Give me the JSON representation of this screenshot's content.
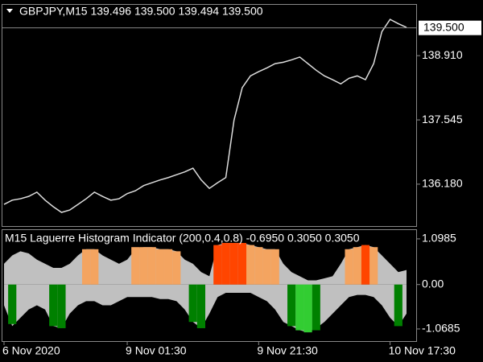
{
  "chart_data": [
    {
      "type": "line",
      "title": "GBPJPY,M15  139.496 139.500 139.494 139.500",
      "color": "#dddddd",
      "categories": [
        "6 Nov 2020",
        null,
        null,
        null,
        null,
        null,
        null,
        null,
        null,
        null,
        null,
        null,
        null,
        null,
        null,
        "9 Nov 01:30",
        null,
        null,
        null,
        null,
        null,
        null,
        null,
        null,
        null,
        null,
        null,
        null,
        null,
        null,
        null,
        "9 Nov 21:30",
        null,
        null,
        null,
        null,
        null,
        null,
        null,
        null,
        null,
        null,
        null,
        null,
        null,
        null,
        null,
        "10 Nov 17:30",
        null,
        null
      ],
      "values": [
        135.75,
        135.84,
        135.87,
        135.92,
        136.01,
        135.84,
        135.7,
        135.58,
        135.63,
        135.75,
        135.87,
        136.01,
        135.92,
        135.84,
        135.87,
        135.98,
        136.04,
        136.15,
        136.21,
        136.27,
        136.32,
        136.38,
        136.44,
        136.52,
        136.27,
        136.09,
        136.21,
        136.32,
        137.54,
        138.23,
        138.48,
        138.57,
        138.65,
        138.74,
        138.77,
        138.82,
        138.88,
        138.74,
        138.6,
        138.48,
        138.4,
        138.31,
        138.43,
        138.48,
        138.4,
        138.74,
        139.42,
        139.68,
        139.59,
        139.51
      ],
      "ylim": [
        135.29,
        139.99
      ],
      "yticks": [
        {
          "value": 136.18,
          "label": "136.180"
        },
        137.545,
        {
          "value": 138.91,
          "label": "138.910"
        }
      ],
      "current_price": {
        "value": 139.5,
        "label": "139.500"
      }
    },
    {
      "type": "histogram-area",
      "title": "M15 Laguerre Histogram Indicator (200,0.4,0.8) -0.6950 0.3050 0.3050",
      "ylim": [
        -1.36,
        1.31
      ],
      "yticks": [
        1.0985,
        {
          "value": 0,
          "label": "0.00"
        },
        -1.0685
      ],
      "series": [
        {
          "kind": "area",
          "color": "#c0c0c0",
          "values": [
            0.5,
            0.7,
            0.8,
            0.75,
            0.6,
            0.5,
            0.4,
            0.4,
            0.5,
            0.7,
            0.85,
            0.85,
            0.7,
            0.6,
            0.5,
            0.6,
            0.85,
            0.9,
            0.9,
            0.85,
            0.85,
            0.8,
            0.6,
            0.5,
            0.3,
            0.2,
            0.95,
            1.0,
            1.0,
            1.0,
            0.95,
            0.9,
            0.85,
            0.85,
            0.5,
            0.3,
            0.2,
            0.1,
            0.1,
            0.15,
            0.2,
            0.5,
            0.85,
            0.9,
            0.95,
            0.9,
            0.7,
            0.5,
            0.3,
            0.35
          ]
        },
        {
          "kind": "area",
          "color": "#c0c0c0",
          "values": [
            -0.5,
            -1.0,
            -0.8,
            -0.6,
            -0.5,
            -0.6,
            -1.0,
            -1.05,
            -0.7,
            -0.5,
            -0.4,
            -0.4,
            -0.5,
            -0.5,
            -0.4,
            -0.3,
            -0.3,
            -0.3,
            -0.3,
            -0.35,
            -0.35,
            -0.4,
            -0.6,
            -0.9,
            -1.05,
            -0.7,
            -0.3,
            -0.2,
            -0.2,
            -0.2,
            -0.2,
            -0.3,
            -0.4,
            -0.6,
            -0.9,
            -1.0,
            -1.1,
            -1.15,
            -1.05,
            -0.9,
            -0.7,
            -0.5,
            -0.3,
            -0.25,
            -0.25,
            -0.3,
            -0.5,
            -0.8,
            -1.0,
            -0.7
          ]
        },
        {
          "kind": "bar",
          "color": "#f4a460",
          "values": [
            null,
            null,
            null,
            null,
            null,
            null,
            null,
            null,
            null,
            null,
            0.85,
            0.85,
            null,
            null,
            null,
            null,
            0.9,
            0.9,
            0.9,
            0.85,
            0.85,
            0.8,
            null,
            null,
            null,
            null,
            null,
            null,
            null,
            null,
            0.95,
            0.9,
            0.85,
            0.85,
            null,
            null,
            null,
            null,
            null,
            null,
            null,
            null,
            0.85,
            0.9,
            null,
            0.9,
            null,
            null,
            null,
            null
          ]
        },
        {
          "kind": "bar",
          "color": "#ff4500",
          "values": [
            null,
            null,
            null,
            null,
            null,
            null,
            null,
            null,
            null,
            null,
            null,
            null,
            null,
            null,
            null,
            null,
            null,
            null,
            null,
            null,
            null,
            null,
            null,
            null,
            null,
            null,
            0.95,
            1.0,
            1.0,
            1.0,
            null,
            null,
            null,
            null,
            null,
            null,
            null,
            null,
            null,
            null,
            null,
            null,
            null,
            null,
            0.95,
            null,
            null,
            null,
            null,
            null
          ]
        },
        {
          "kind": "bar",
          "color": "#008000",
          "values": [
            null,
            -0.95,
            null,
            null,
            null,
            null,
            -1.0,
            -1.05,
            null,
            null,
            null,
            null,
            null,
            null,
            null,
            null,
            null,
            null,
            null,
            null,
            null,
            null,
            null,
            -0.9,
            -1.05,
            null,
            null,
            null,
            null,
            null,
            null,
            null,
            null,
            null,
            null,
            -1.0,
            null,
            null,
            -1.1,
            null,
            null,
            null,
            null,
            null,
            null,
            null,
            null,
            null,
            -1.0,
            null
          ]
        },
        {
          "kind": "bar",
          "color": "#32cd32",
          "values": [
            null,
            null,
            null,
            null,
            null,
            null,
            null,
            null,
            null,
            null,
            null,
            null,
            null,
            null,
            null,
            null,
            null,
            null,
            null,
            null,
            null,
            null,
            null,
            null,
            null,
            null,
            null,
            null,
            null,
            null,
            null,
            null,
            null,
            null,
            null,
            null,
            -1.1,
            -1.15,
            null,
            null,
            null,
            null,
            null,
            null,
            null,
            null,
            null,
            null,
            null,
            null
          ]
        }
      ]
    }
  ]
}
